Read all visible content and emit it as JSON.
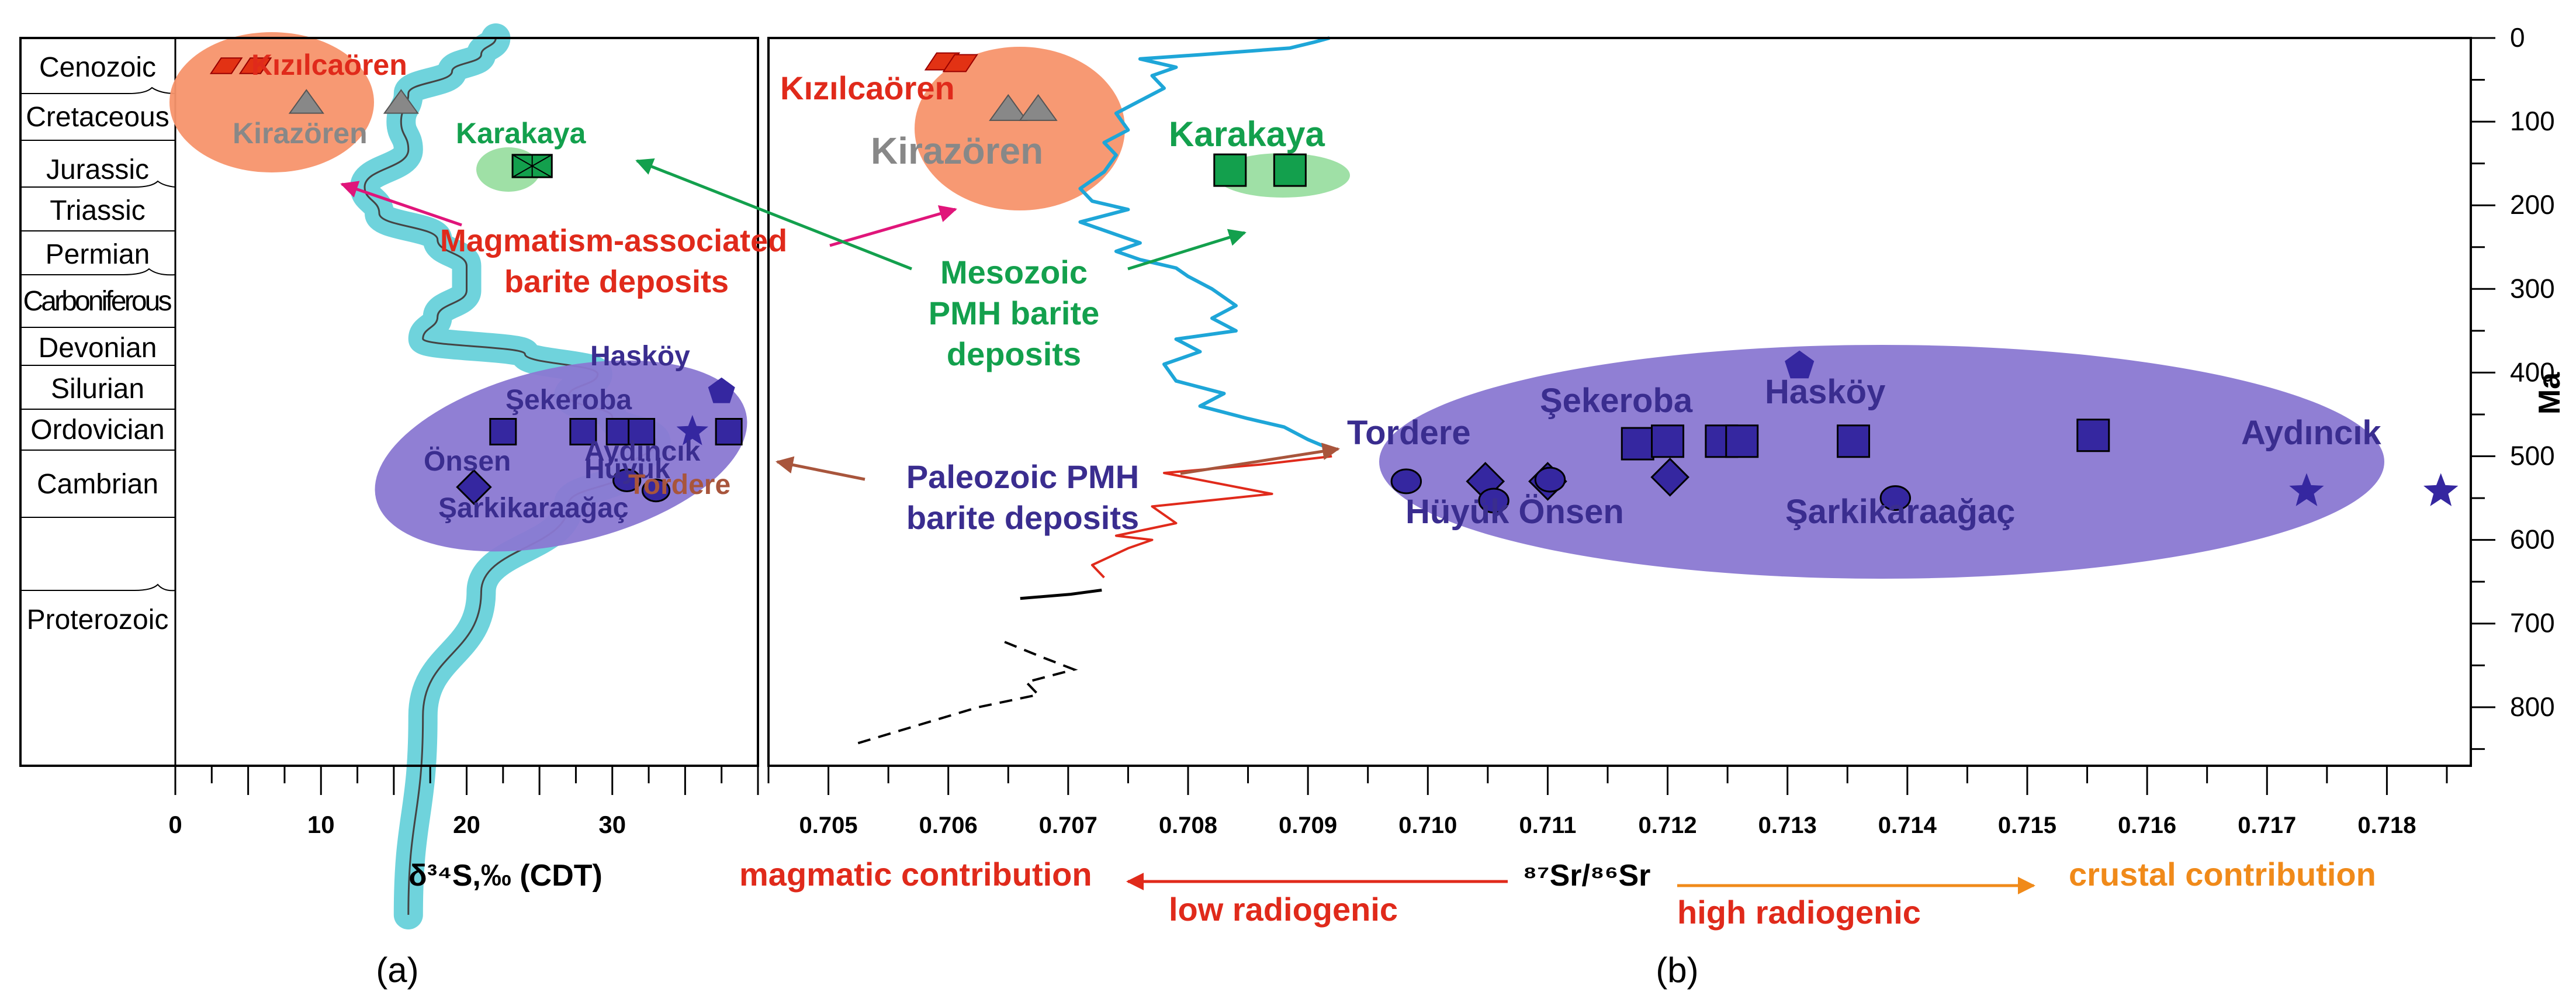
{
  "colors": {
    "magmatic": "#e02a1b",
    "mesozoic": "#13a04d",
    "paleozoic": "#3a2d8f",
    "ellipse_magmatic": "#f7936b",
    "ellipse_mesozoic": "#9fe0a6",
    "ellipse_paleozoic": "#8a78d2",
    "sulfur_band": "#6fd3dc",
    "sr_curve": "#1ea6d8",
    "pink_arrow": "#e0157a",
    "brown_arrow": "#a8553c",
    "orange": "#f08a1a",
    "kirazoren_gray": "#888888",
    "marker_fill": "#3527a0",
    "marker_red": "#e23214"
  },
  "chart_data": [
    {
      "type": "scatter",
      "panel_label": "(a)",
      "xlabel": "δ³⁴S,‰ (CDT)",
      "xlim": [
        0,
        40
      ],
      "x_ticks": [
        0,
        10,
        20,
        30
      ],
      "periods": [
        "Cenozoic",
        "Cretaceous",
        "Jurassic",
        "Triassic",
        "Permian",
        "Carboniferous",
        "Devonian",
        "Silurian",
        "Ordovician",
        "Cambrian",
        "Proterozoic"
      ],
      "seawater_curve": [
        {
          "x": 22,
          "row": 0.0
        },
        {
          "x": 21,
          "row": 0.3
        },
        {
          "x": 19,
          "row": 0.6
        },
        {
          "x": 16,
          "row": 1.0
        },
        {
          "x": 15.5,
          "row": 1.6
        },
        {
          "x": 16,
          "row": 2.2
        },
        {
          "x": 13,
          "row": 3.0
        },
        {
          "x": 14,
          "row": 3.6
        },
        {
          "x": 18,
          "row": 4.2
        },
        {
          "x": 20,
          "row": 4.8
        },
        {
          "x": 20,
          "row": 5.3
        },
        {
          "x": 18,
          "row": 5.8
        },
        {
          "x": 17,
          "row": 6.3
        },
        {
          "x": 24,
          "row": 6.7
        },
        {
          "x": 29,
          "row": 7.2
        },
        {
          "x": 27,
          "row": 7.7
        },
        {
          "x": 30,
          "row": 8.2
        },
        {
          "x": 33,
          "row": 8.8
        },
        {
          "x": 31,
          "row": 9.3
        },
        {
          "x": 27,
          "row": 9.8
        },
        {
          "x": 21,
          "row": 10.3
        },
        {
          "x": 17,
          "row": 10.8
        },
        {
          "x": 16,
          "row": 11.6
        }
      ],
      "labels": {
        "kizilcaoren": "Kızılcaören",
        "kirazoren": "Kirazören",
        "karakaya": "Karakaya",
        "haskoy": "Hasköy",
        "sekeroba": "Şekeroba",
        "onsen": "Önsen",
        "aydincik": "Aydıncık",
        "huyuk": "Hüyük",
        "tordere": "Tordere",
        "sarkikaraagac": "Şarkikaraağaç",
        "magmatism_line1": "Magmatism-associated",
        "magmatism_line2": "barite deposits",
        "mesozoic_line1": "Mesozoic",
        "mesozoic_line2": "PMH barite",
        "mesozoic_line3": "deposits",
        "paleozoic_line1": "Paleozoic PMH",
        "paleozoic_line2": "barite deposits"
      },
      "points": [
        {
          "x": 3.5,
          "row": 0.5,
          "marker": "parallelogram",
          "group": "magmatic"
        },
        {
          "x": 5.5,
          "row": 0.5,
          "marker": "parallelogram",
          "group": "magmatic"
        },
        {
          "x": 9,
          "row": 1.2,
          "marker": "triangle",
          "group": "kirazoren"
        },
        {
          "x": 15.5,
          "row": 1.2,
          "marker": "triangle",
          "group": "kirazoren"
        },
        {
          "x": 24.5,
          "row": 2.55,
          "marker": "boxcross",
          "group": "mesozoic"
        },
        {
          "x": 37.5,
          "row": 7.6,
          "marker": "pentagon",
          "group": "paleozoic"
        },
        {
          "x": 22.5,
          "row": 8.55,
          "marker": "square",
          "group": "paleozoic"
        },
        {
          "x": 28,
          "row": 8.55,
          "marker": "square",
          "group": "paleozoic"
        },
        {
          "x": 30.5,
          "row": 8.55,
          "marker": "square",
          "group": "paleozoic"
        },
        {
          "x": 32,
          "row": 8.55,
          "marker": "square",
          "group": "paleozoic"
        },
        {
          "x": 38,
          "row": 8.55,
          "marker": "square",
          "group": "paleozoic"
        },
        {
          "x": 35.5,
          "row": 8.55,
          "marker": "star",
          "group": "paleozoic"
        },
        {
          "x": 20.5,
          "row": 9.55,
          "marker": "diamond",
          "group": "paleozoic"
        },
        {
          "x": 33,
          "row": 9.6,
          "marker": "circle",
          "group": "paleozoic"
        },
        {
          "x": 31,
          "row": 9.45,
          "marker": "circle",
          "group": "paleozoic"
        }
      ]
    },
    {
      "type": "scatter",
      "panel_label": "(b)",
      "xlabel": "⁸⁷Sr/⁸⁶Sr",
      "ylabel": "Ma",
      "xlim": [
        0.7045,
        0.7187
      ],
      "ylim": [
        0,
        870
      ],
      "x_ticks": [
        "0.705",
        "0.706",
        "0.707",
        "0.708",
        "0.709",
        "0.710",
        "0.711",
        "0.712",
        "0.713",
        "0.714",
        "0.715",
        "0.716",
        "0.717",
        "0.718"
      ],
      "y_ticks": [
        0,
        100,
        200,
        300,
        400,
        500,
        600,
        700,
        800
      ],
      "labels": {
        "kizilcaoren": "Kızılcaören",
        "kirazoren": "Kirazören",
        "karakaya": "Karakaya",
        "mesozoic_line1": "Mesozoic",
        "mesozoic_line2": "PMH barite",
        "mesozoic_line3": "deposits",
        "paleozoic_line1": "Paleozoic PMH",
        "paleozoic_line2": "barite deposits",
        "tordere": "Tordere",
        "sekeroba": "Şekeroba",
        "haskoy": "Hasköy",
        "aydincik": "Aydıncık",
        "huyuk_onsen": "Hüyük Önsen",
        "sarkikaraagac": "Şarkikaraağaç"
      },
      "seawater_curve": [
        [
          0.70918,
          0
        ],
        [
          0.70905,
          5
        ],
        [
          0.70885,
          12
        ],
        [
          0.7081,
          20
        ],
        [
          0.7076,
          25
        ],
        [
          0.7079,
          35
        ],
        [
          0.7077,
          45
        ],
        [
          0.7078,
          60
        ],
        [
          0.7076,
          75
        ],
        [
          0.7074,
          90
        ],
        [
          0.7075,
          110
        ],
        [
          0.7073,
          125
        ],
        [
          0.7074,
          140
        ],
        [
          0.7073,
          160
        ],
        [
          0.7071,
          180
        ],
        [
          0.7072,
          195
        ],
        [
          0.7075,
          205
        ],
        [
          0.7071,
          220
        ],
        [
          0.7074,
          235
        ],
        [
          0.7076,
          245
        ],
        [
          0.7074,
          255
        ],
        [
          0.7076,
          265
        ],
        [
          0.7079,
          275
        ],
        [
          0.708,
          285
        ],
        [
          0.7082,
          300
        ],
        [
          0.7084,
          320
        ],
        [
          0.7082,
          335
        ],
        [
          0.7084,
          350
        ],
        [
          0.7079,
          360
        ],
        [
          0.7081,
          375
        ],
        [
          0.7078,
          390
        ],
        [
          0.7079,
          410
        ],
        [
          0.7083,
          425
        ],
        [
          0.7081,
          440
        ],
        [
          0.7085,
          455
        ],
        [
          0.7088,
          465
        ],
        [
          0.709,
          480
        ],
        [
          0.7092,
          492
        ]
      ],
      "red_curve": [
        [
          0.7092,
          500
        ],
        [
          0.7086,
          510
        ],
        [
          0.7078,
          520
        ],
        [
          0.7087,
          545
        ],
        [
          0.7077,
          560
        ],
        [
          0.7079,
          580
        ],
        [
          0.7074,
          595
        ],
        [
          0.7077,
          600
        ],
        [
          0.7075,
          610
        ],
        [
          0.7072,
          630
        ],
        [
          0.7073,
          645
        ]
      ],
      "black_curve": [
        [
          0.7066,
          670
        ],
        [
          0.70702,
          665
        ],
        [
          0.70728,
          660
        ]
      ],
      "dashed_curve": [
        [
          0.70647,
          722
        ],
        [
          0.70678,
          740
        ],
        [
          0.70705,
          755
        ],
        [
          0.70665,
          770
        ],
        [
          0.70675,
          785
        ],
        [
          0.70625,
          800
        ],
        [
          0.7052,
          845
        ]
      ],
      "points": [
        {
          "x": 0.70595,
          "y": 28,
          "marker": "parallelogram",
          "group": "magmatic"
        },
        {
          "x": 0.7061,
          "y": 30,
          "marker": "parallelogram",
          "group": "magmatic"
        },
        {
          "x": 0.7065,
          "y": 85,
          "marker": "triangle",
          "group": "kirazoren"
        },
        {
          "x": 0.70675,
          "y": 85,
          "marker": "triangle",
          "group": "kirazoren"
        },
        {
          "x": 0.70835,
          "y": 158,
          "marker": "square",
          "group": "mesozoic"
        },
        {
          "x": 0.70885,
          "y": 158,
          "marker": "square",
          "group": "mesozoic"
        },
        {
          "x": 0.70982,
          "y": 530,
          "marker": "circle",
          "group": "paleozoic"
        },
        {
          "x": 0.71048,
          "y": 530,
          "marker": "diamond",
          "group": "paleozoic"
        },
        {
          "x": 0.71055,
          "y": 553,
          "marker": "circle",
          "group": "paleozoic"
        },
        {
          "x": 0.711,
          "y": 530,
          "marker": "diamond",
          "group": "paleozoic"
        },
        {
          "x": 0.71102,
          "y": 528,
          "marker": "circle",
          "group": "paleozoic"
        },
        {
          "x": 0.71202,
          "y": 525,
          "marker": "diamond",
          "group": "paleozoic"
        },
        {
          "x": 0.71175,
          "y": 485,
          "marker": "square",
          "group": "paleozoic"
        },
        {
          "x": 0.712,
          "y": 482,
          "marker": "square",
          "group": "paleozoic"
        },
        {
          "x": 0.71245,
          "y": 482,
          "marker": "square",
          "group": "paleozoic"
        },
        {
          "x": 0.71262,
          "y": 482,
          "marker": "square",
          "group": "paleozoic"
        },
        {
          "x": 0.71355,
          "y": 482,
          "marker": "square",
          "group": "paleozoic"
        },
        {
          "x": 0.71555,
          "y": 475,
          "marker": "square",
          "group": "paleozoic"
        },
        {
          "x": 0.7131,
          "y": 392,
          "marker": "pentagon",
          "group": "paleozoic"
        },
        {
          "x": 0.7139,
          "y": 550,
          "marker": "circle",
          "group": "paleozoic"
        },
        {
          "x": 0.71733,
          "y": 542,
          "marker": "star",
          "group": "paleozoic"
        },
        {
          "x": 0.71845,
          "y": 542,
          "marker": "star",
          "group": "paleozoic"
        }
      ]
    }
  ],
  "bottom_annotations": {
    "magmatic_contribution": "magmatic contribution",
    "low_radiogenic": "low radiogenic",
    "high_radiogenic": "high radiogenic",
    "crustal_contribution": "crustal contribution"
  }
}
